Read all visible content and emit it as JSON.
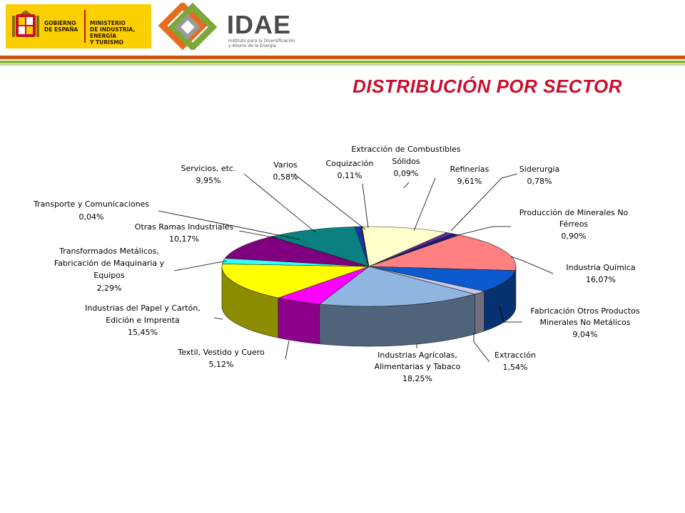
{
  "header": {
    "gov_text": "GOBIERNO\nDE ESPAÑA",
    "ministry_text": "MINISTERIO\nDE INDUSTRIA, ENERGÍA\nY TURISMO",
    "idae_word": "IDAE",
    "idae_tagline": "Instituto para la Diversificación\ny Ahorro de la Energía"
  },
  "colors": {
    "title": "#c8102e",
    "gov_yellow": "#fccf00",
    "bar_orange": "#d4520f",
    "bar_green": "#8ab833"
  },
  "chart_data": {
    "type": "pie",
    "title": "DISTRIBUCIÓN POR SECTOR",
    "unit": "%",
    "slices": [
      {
        "label": "Extracción de Combustibles Sólidos",
        "value": 0.09,
        "value_text": "0,09%",
        "color": "#9b1b1b"
      },
      {
        "label": "Refinerías",
        "value": 9.61,
        "value_text": "9,61%",
        "color": "#ffffcc"
      },
      {
        "label": "Siderurgia",
        "value": 0.78,
        "value_text": "0,78%",
        "color": "#6a2a9a"
      },
      {
        "label": "Producción de Minerales No Férreos",
        "value": 0.9,
        "value_text": "0,90%",
        "color": "#1a1a7a"
      },
      {
        "label": "Industria Química",
        "value": 16.07,
        "value_text": "16,07%",
        "color": "#ff8080"
      },
      {
        "label": "Fabricación Otros Productos Minerales No Metálicos",
        "value": 9.04,
        "value_text": "9,04%",
        "color": "#0b5ad0"
      },
      {
        "label": "Extracción",
        "value": 1.54,
        "value_text": "1,54%",
        "color": "#c8c8e8"
      },
      {
        "label": "Industrias Agrícolas, Alimentarias y Tabaco",
        "value": 18.25,
        "value_text": "18,25%",
        "color": "#8fb6e0"
      },
      {
        "label": "Textil, Vestido y Cuero",
        "value": 5.12,
        "value_text": "5,12%",
        "color": "#ff00ff"
      },
      {
        "label": "Industrias del Papel y Cartón, Edición e Imprenta",
        "value": 15.45,
        "value_text": "15,45%",
        "color": "#ffff00"
      },
      {
        "label": "Transformados Metálicos, Fabricación de Maquinaria y Equipos",
        "value": 2.29,
        "value_text": "2,29%",
        "color": "#33ffff"
      },
      {
        "label": "Otras Ramas Industriales",
        "value": 10.17,
        "value_text": "10,17%",
        "color": "#800080"
      },
      {
        "label": "Transporte y Comunicaciones",
        "value": 0.04,
        "value_text": "0,04%",
        "color": "#9f3a3a"
      },
      {
        "label": "Servicios, etc.",
        "value": 9.95,
        "value_text": "9,95%",
        "color": "#0a8080"
      },
      {
        "label": "Varios",
        "value": 0.58,
        "value_text": "0,58%",
        "color": "#1a30c0"
      },
      {
        "label": "Coquización",
        "value": 0.11,
        "value_text": "0,11%",
        "color": "#2a2a9a"
      }
    ]
  }
}
